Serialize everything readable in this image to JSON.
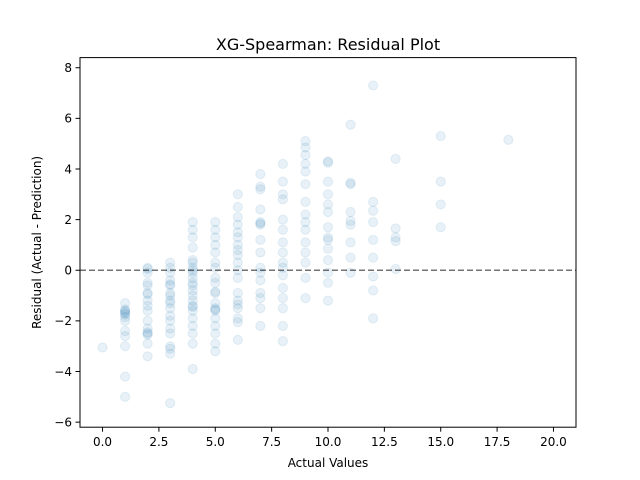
{
  "chart_data": {
    "type": "scatter",
    "title": "XG-Spearman: Residual Plot",
    "xlabel": "Actual Values",
    "ylabel": "Residual (Actual - Prediction)",
    "xlim": [
      -1.0,
      21.0
    ],
    "ylim": [
      -6.2,
      8.4
    ],
    "xticks": [
      0.0,
      2.5,
      5.0,
      7.5,
      10.0,
      12.5,
      15.0,
      17.5,
      20.0
    ],
    "xtick_labels": [
      "0.0",
      "2.5",
      "5.0",
      "7.5",
      "10.0",
      "12.5",
      "15.0",
      "17.5",
      "20.0"
    ],
    "yticks": [
      -6,
      -4,
      -2,
      0,
      2,
      4,
      6,
      8
    ],
    "ytick_labels": [
      "−6",
      "−4",
      "−2",
      "0",
      "2",
      "4",
      "6",
      "8"
    ],
    "reference_line": {
      "y": 0,
      "style": "dashed",
      "color": "#555555"
    },
    "grid": false,
    "marker_color": "#1f77b4",
    "marker_alpha": 0.1,
    "points": [
      {
        "x": 0,
        "y": -3.05
      },
      {
        "x": 1,
        "y": -1.3
      },
      {
        "x": 1,
        "y": -1.55
      },
      {
        "x": 1,
        "y": -1.7
      },
      {
        "x": 1,
        "y": -1.85
      },
      {
        "x": 1,
        "y": -1.6
      },
      {
        "x": 1,
        "y": -2.0
      },
      {
        "x": 1,
        "y": -2.4
      },
      {
        "x": 1,
        "y": -2.6
      },
      {
        "x": 1,
        "y": -3.0
      },
      {
        "x": 1,
        "y": -4.2
      },
      {
        "x": 1,
        "y": -5.0
      },
      {
        "x": 1,
        "y": -1.65
      },
      {
        "x": 1,
        "y": -1.75
      },
      {
        "x": 2,
        "y": 0.05
      },
      {
        "x": 2,
        "y": 0.1
      },
      {
        "x": 2,
        "y": -0.5
      },
      {
        "x": 2,
        "y": -0.6
      },
      {
        "x": 2,
        "y": -0.9
      },
      {
        "x": 2,
        "y": -1.2
      },
      {
        "x": 2,
        "y": -1.4
      },
      {
        "x": 2,
        "y": -1.6
      },
      {
        "x": 2,
        "y": -2.0
      },
      {
        "x": 2,
        "y": -2.3
      },
      {
        "x": 2,
        "y": -2.45
      },
      {
        "x": 2,
        "y": -2.55
      },
      {
        "x": 2,
        "y": -2.9
      },
      {
        "x": 2,
        "y": -3.4
      },
      {
        "x": 2,
        "y": -0.1
      },
      {
        "x": 2,
        "y": -0.95
      },
      {
        "x": 2,
        "y": -2.5
      },
      {
        "x": 3,
        "y": 0.3
      },
      {
        "x": 3,
        "y": 0.1
      },
      {
        "x": 3,
        "y": -0.1
      },
      {
        "x": 3,
        "y": -0.4
      },
      {
        "x": 3,
        "y": -0.6
      },
      {
        "x": 3,
        "y": -0.9
      },
      {
        "x": 3,
        "y": -1.0
      },
      {
        "x": 3,
        "y": -1.3
      },
      {
        "x": 3,
        "y": -1.5
      },
      {
        "x": 3,
        "y": -1.8
      },
      {
        "x": 3,
        "y": -2.0
      },
      {
        "x": 3,
        "y": -2.3
      },
      {
        "x": 3,
        "y": -2.5
      },
      {
        "x": 3,
        "y": -3.0
      },
      {
        "x": 3,
        "y": -3.1
      },
      {
        "x": 3,
        "y": -3.3
      },
      {
        "x": 3,
        "y": -5.25
      },
      {
        "x": 3,
        "y": -0.55
      },
      {
        "x": 3,
        "y": -1.2
      },
      {
        "x": 4,
        "y": 1.9
      },
      {
        "x": 4,
        "y": 1.6
      },
      {
        "x": 4,
        "y": 1.3
      },
      {
        "x": 4,
        "y": 0.9
      },
      {
        "x": 4,
        "y": 0.4
      },
      {
        "x": 4,
        "y": 0.3
      },
      {
        "x": 4,
        "y": 0.1
      },
      {
        "x": 4,
        "y": -0.1
      },
      {
        "x": 4,
        "y": -0.3
      },
      {
        "x": 4,
        "y": -0.5
      },
      {
        "x": 4,
        "y": -0.8
      },
      {
        "x": 4,
        "y": -1.0
      },
      {
        "x": 4,
        "y": -1.2
      },
      {
        "x": 4,
        "y": -1.4
      },
      {
        "x": 4,
        "y": -1.6
      },
      {
        "x": 4,
        "y": -1.9
      },
      {
        "x": 4,
        "y": -2.2
      },
      {
        "x": 4,
        "y": -2.5
      },
      {
        "x": 4,
        "y": -2.9
      },
      {
        "x": 4,
        "y": -3.9
      },
      {
        "x": 4,
        "y": 0.0
      },
      {
        "x": 4,
        "y": -0.6
      },
      {
        "x": 4,
        "y": -1.45
      },
      {
        "x": 5,
        "y": 1.9
      },
      {
        "x": 5,
        "y": 1.6
      },
      {
        "x": 5,
        "y": 1.3
      },
      {
        "x": 5,
        "y": 1.0
      },
      {
        "x": 5,
        "y": 0.7
      },
      {
        "x": 5,
        "y": 0.3
      },
      {
        "x": 5,
        "y": 0.1
      },
      {
        "x": 5,
        "y": -0.3
      },
      {
        "x": 5,
        "y": -0.5
      },
      {
        "x": 5,
        "y": -0.9
      },
      {
        "x": 5,
        "y": -1.3
      },
      {
        "x": 5,
        "y": -1.5
      },
      {
        "x": 5,
        "y": -1.6
      },
      {
        "x": 5,
        "y": -1.9
      },
      {
        "x": 5,
        "y": -2.2
      },
      {
        "x": 5,
        "y": -2.5
      },
      {
        "x": 5,
        "y": -2.9
      },
      {
        "x": 5,
        "y": -3.2
      },
      {
        "x": 5,
        "y": -0.85
      },
      {
        "x": 5,
        "y": -1.55
      },
      {
        "x": 6,
        "y": 3.0
      },
      {
        "x": 6,
        "y": 2.5
      },
      {
        "x": 6,
        "y": 2.1
      },
      {
        "x": 6,
        "y": 1.8
      },
      {
        "x": 6,
        "y": 1.5
      },
      {
        "x": 6,
        "y": 1.3
      },
      {
        "x": 6,
        "y": 1.0
      },
      {
        "x": 6,
        "y": 0.6
      },
      {
        "x": 6,
        "y": 0.3
      },
      {
        "x": 6,
        "y": 0.0
      },
      {
        "x": 6,
        "y": -0.3
      },
      {
        "x": 6,
        "y": -0.9
      },
      {
        "x": 6,
        "y": -1.2
      },
      {
        "x": 6,
        "y": -1.5
      },
      {
        "x": 6,
        "y": -1.9
      },
      {
        "x": 6,
        "y": -2.05
      },
      {
        "x": 6,
        "y": -2.75
      },
      {
        "x": 6,
        "y": 0.8
      },
      {
        "x": 6,
        "y": -1.35
      },
      {
        "x": 7,
        "y": 3.8
      },
      {
        "x": 7,
        "y": 3.3
      },
      {
        "x": 7,
        "y": 3.2
      },
      {
        "x": 7,
        "y": 2.4
      },
      {
        "x": 7,
        "y": 1.9
      },
      {
        "x": 7,
        "y": 1.8
      },
      {
        "x": 7,
        "y": 1.2
      },
      {
        "x": 7,
        "y": 0.7
      },
      {
        "x": 7,
        "y": 0.1
      },
      {
        "x": 7,
        "y": -0.1
      },
      {
        "x": 7,
        "y": -0.4
      },
      {
        "x": 7,
        "y": -0.9
      },
      {
        "x": 7,
        "y": -1.1
      },
      {
        "x": 7,
        "y": -1.5
      },
      {
        "x": 7,
        "y": -2.2
      },
      {
        "x": 7,
        "y": 1.85
      },
      {
        "x": 8,
        "y": 4.2
      },
      {
        "x": 8,
        "y": 3.5
      },
      {
        "x": 8,
        "y": 3.0
      },
      {
        "x": 8,
        "y": 2.8
      },
      {
        "x": 8,
        "y": 2.0
      },
      {
        "x": 8,
        "y": 1.6
      },
      {
        "x": 8,
        "y": 1.1
      },
      {
        "x": 8,
        "y": 0.7
      },
      {
        "x": 8,
        "y": 0.3
      },
      {
        "x": 8,
        "y": 0.1
      },
      {
        "x": 8,
        "y": -0.2
      },
      {
        "x": 8,
        "y": -0.7
      },
      {
        "x": 8,
        "y": -1.1
      },
      {
        "x": 8,
        "y": -1.5
      },
      {
        "x": 8,
        "y": -2.2
      },
      {
        "x": 8,
        "y": -2.8
      },
      {
        "x": 9,
        "y": 5.1
      },
      {
        "x": 9,
        "y": 4.85
      },
      {
        "x": 9,
        "y": 4.55
      },
      {
        "x": 9,
        "y": 4.2
      },
      {
        "x": 9,
        "y": 3.4
      },
      {
        "x": 9,
        "y": 2.7
      },
      {
        "x": 9,
        "y": 2.2
      },
      {
        "x": 9,
        "y": 1.6
      },
      {
        "x": 9,
        "y": 1.1
      },
      {
        "x": 9,
        "y": 0.7
      },
      {
        "x": 9,
        "y": 0.3
      },
      {
        "x": 9,
        "y": -0.3
      },
      {
        "x": 9,
        "y": -1.1
      },
      {
        "x": 9,
        "y": 3.9
      },
      {
        "x": 9,
        "y": 1.9
      },
      {
        "x": 10,
        "y": 4.3
      },
      {
        "x": 10,
        "y": 3.5
      },
      {
        "x": 10,
        "y": 3.0
      },
      {
        "x": 10,
        "y": 2.6
      },
      {
        "x": 10,
        "y": 2.3
      },
      {
        "x": 10,
        "y": 1.7
      },
      {
        "x": 10,
        "y": 1.3
      },
      {
        "x": 10,
        "y": 1.2
      },
      {
        "x": 10,
        "y": 0.85
      },
      {
        "x": 10,
        "y": 0.4
      },
      {
        "x": 10,
        "y": -0.1
      },
      {
        "x": 10,
        "y": -0.5
      },
      {
        "x": 10,
        "y": -1.2
      },
      {
        "x": 10,
        "y": 4.25
      },
      {
        "x": 11,
        "y": 5.75
      },
      {
        "x": 11,
        "y": 3.45
      },
      {
        "x": 11,
        "y": 2.3
      },
      {
        "x": 11,
        "y": 1.95
      },
      {
        "x": 11,
        "y": 1.8
      },
      {
        "x": 11,
        "y": 1.1
      },
      {
        "x": 11,
        "y": 0.5
      },
      {
        "x": 11,
        "y": -0.1
      },
      {
        "x": 11,
        "y": 3.4
      },
      {
        "x": 12,
        "y": 7.3
      },
      {
        "x": 12,
        "y": 2.7
      },
      {
        "x": 12,
        "y": 2.35
      },
      {
        "x": 12,
        "y": 1.9
      },
      {
        "x": 12,
        "y": 1.2
      },
      {
        "x": 12,
        "y": 0.5
      },
      {
        "x": 12,
        "y": -0.25
      },
      {
        "x": 12,
        "y": -0.8
      },
      {
        "x": 12,
        "y": -1.9
      },
      {
        "x": 13,
        "y": 4.4
      },
      {
        "x": 13,
        "y": 1.65
      },
      {
        "x": 13,
        "y": 1.3
      },
      {
        "x": 13,
        "y": 1.15
      },
      {
        "x": 13,
        "y": 0.05
      },
      {
        "x": 15,
        "y": 3.5
      },
      {
        "x": 15,
        "y": 1.7
      },
      {
        "x": 15,
        "y": 5.3
      },
      {
        "x": 15,
        "y": 2.6
      },
      {
        "x": 18,
        "y": 5.15
      }
    ]
  }
}
